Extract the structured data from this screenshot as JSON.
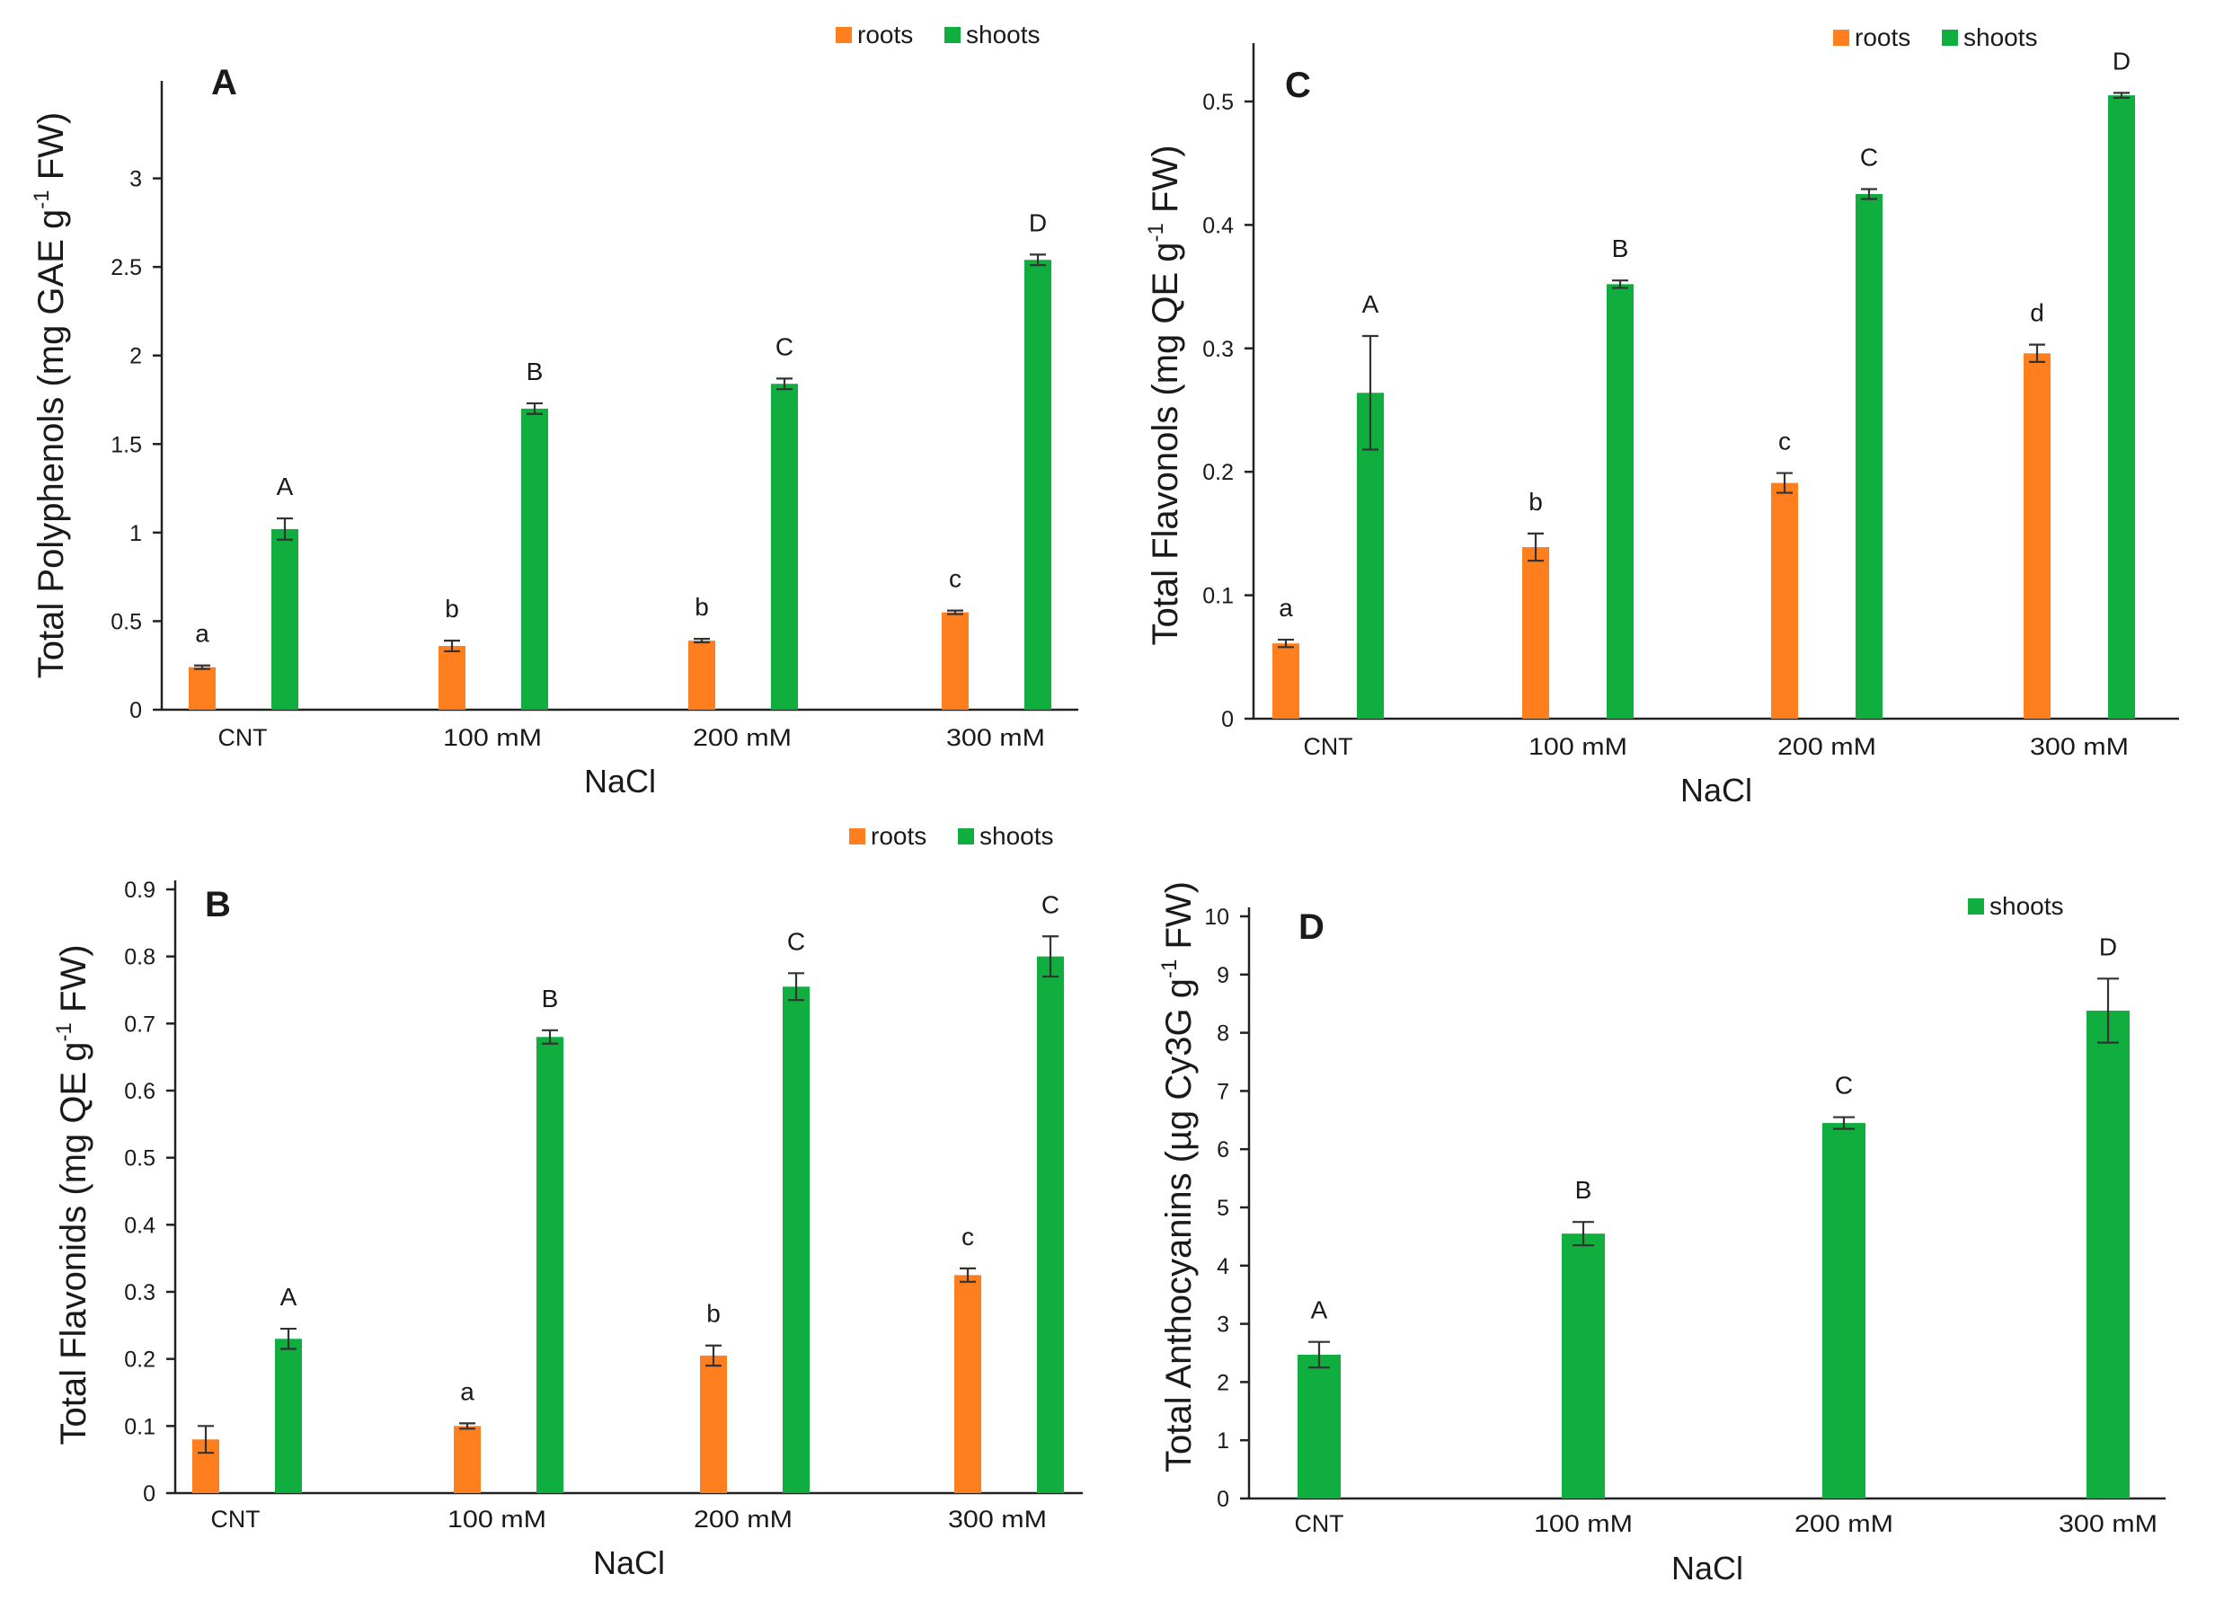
{
  "colors": {
    "roots": "#FF7F1E",
    "shoots": "#0FAE3F"
  },
  "chart_data": [
    {
      "panel": "A",
      "type": "bar",
      "ylabel_main": "Total Polyphenols (mg GAE g",
      "ylabel_sup": "-1",
      "ylabel_end": " FW)",
      "xlabel": "NaCl",
      "categories": [
        "CNT",
        "100 mM",
        "200 mM",
        "300 mM"
      ],
      "ylim": [
        0,
        3.5
      ],
      "yticks": [
        0,
        0.5,
        1,
        1.5,
        2,
        2.5,
        3
      ],
      "ytick_labels": [
        "0",
        "0.5",
        "1",
        "1.5",
        "2",
        "2.5",
        "3"
      ],
      "legend_position": "top-right",
      "series": [
        {
          "name": "roots",
          "values": [
            0.24,
            0.36,
            0.39,
            0.55
          ],
          "errors": [
            0.01,
            0.03,
            0.01,
            0.01
          ],
          "labels": [
            "a",
            "b",
            "b",
            "c"
          ]
        },
        {
          "name": "shoots",
          "values": [
            1.02,
            1.7,
            1.84,
            2.54
          ],
          "errors": [
            0.06,
            0.03,
            0.03,
            0.03
          ],
          "labels": [
            "A",
            "B",
            "C",
            "D"
          ]
        }
      ]
    },
    {
      "panel": "C",
      "type": "bar",
      "ylabel_main": "Total Flavonols (mg QE g",
      "ylabel_sup": "-1",
      "ylabel_end": " FW)",
      "xlabel": "NaCl",
      "categories": [
        "CNT",
        "100 mM",
        "200 mM",
        "300 mM"
      ],
      "ylim": [
        0,
        0.54
      ],
      "yticks": [
        0,
        0.1,
        0.2,
        0.3,
        0.4,
        0.5
      ],
      "ytick_labels": [
        "0",
        "0.1",
        "0.2",
        "0.3",
        "0.4",
        "0.5"
      ],
      "legend_position": "top-right",
      "series": [
        {
          "name": "roots",
          "values": [
            0.061,
            0.139,
            0.191,
            0.296
          ],
          "errors": [
            0.003,
            0.011,
            0.008,
            0.007
          ],
          "labels": [
            "a",
            "b",
            "c",
            "d"
          ]
        },
        {
          "name": "shoots",
          "values": [
            0.264,
            0.352,
            0.425,
            0.505
          ],
          "errors": [
            0.046,
            0.003,
            0.004,
            0.002
          ],
          "labels": [
            "A",
            "B",
            "C",
            "D"
          ]
        }
      ]
    },
    {
      "panel": "B",
      "type": "bar",
      "ylabel_main": "Total Flavonids (mg QE g",
      "ylabel_sup": "-1",
      "ylabel_end": " FW)",
      "xlabel": "NaCl",
      "categories": [
        "CNT",
        "100 mM",
        "200 mM",
        "300 mM"
      ],
      "ylim": [
        0,
        0.9
      ],
      "yticks": [
        0,
        0.1,
        0.2,
        0.3,
        0.4,
        0.5,
        0.6,
        0.7,
        0.8,
        0.9
      ],
      "ytick_labels": [
        "0",
        "0.1",
        "0.2",
        "0.3",
        "0.4",
        "0.5",
        "0.6",
        "0.7",
        "0.8",
        "0.9"
      ],
      "legend_position": "top-right",
      "series": [
        {
          "name": "roots",
          "values": [
            0.08,
            0.1,
            0.205,
            0.325
          ],
          "errors": [
            0.02,
            0.004,
            0.015,
            0.01
          ],
          "labels": [
            "",
            "a",
            "b",
            "c"
          ]
        },
        {
          "name": "shoots",
          "values": [
            0.23,
            0.68,
            0.755,
            0.8
          ],
          "errors": [
            0.015,
            0.01,
            0.02,
            0.03
          ],
          "labels": [
            "A",
            "B",
            "C",
            "C"
          ]
        }
      ]
    },
    {
      "panel": "D",
      "type": "bar",
      "ylabel_main": "Total Anthocyanins (µg Cy3G g",
      "ylabel_sup": "-1",
      "ylabel_end": " FW)",
      "xlabel": "NaCl",
      "categories": [
        "CNT",
        "100 mM",
        "200 mM",
        "300 mM"
      ],
      "ylim": [
        0,
        10
      ],
      "yticks": [
        0,
        1,
        2,
        3,
        4,
        5,
        6,
        7,
        8,
        9,
        10
      ],
      "ytick_labels": [
        "0",
        "1",
        "2",
        "3",
        "4",
        "5",
        "6",
        "7",
        "8",
        "9",
        "10"
      ],
      "legend_position": "top-right",
      "series": [
        {
          "name": "shoots",
          "values": [
            2.47,
            4.55,
            6.45,
            8.38
          ],
          "errors": [
            0.22,
            0.2,
            0.1,
            0.55
          ],
          "labels": [
            "A",
            "B",
            "C",
            "D"
          ]
        }
      ]
    }
  ]
}
